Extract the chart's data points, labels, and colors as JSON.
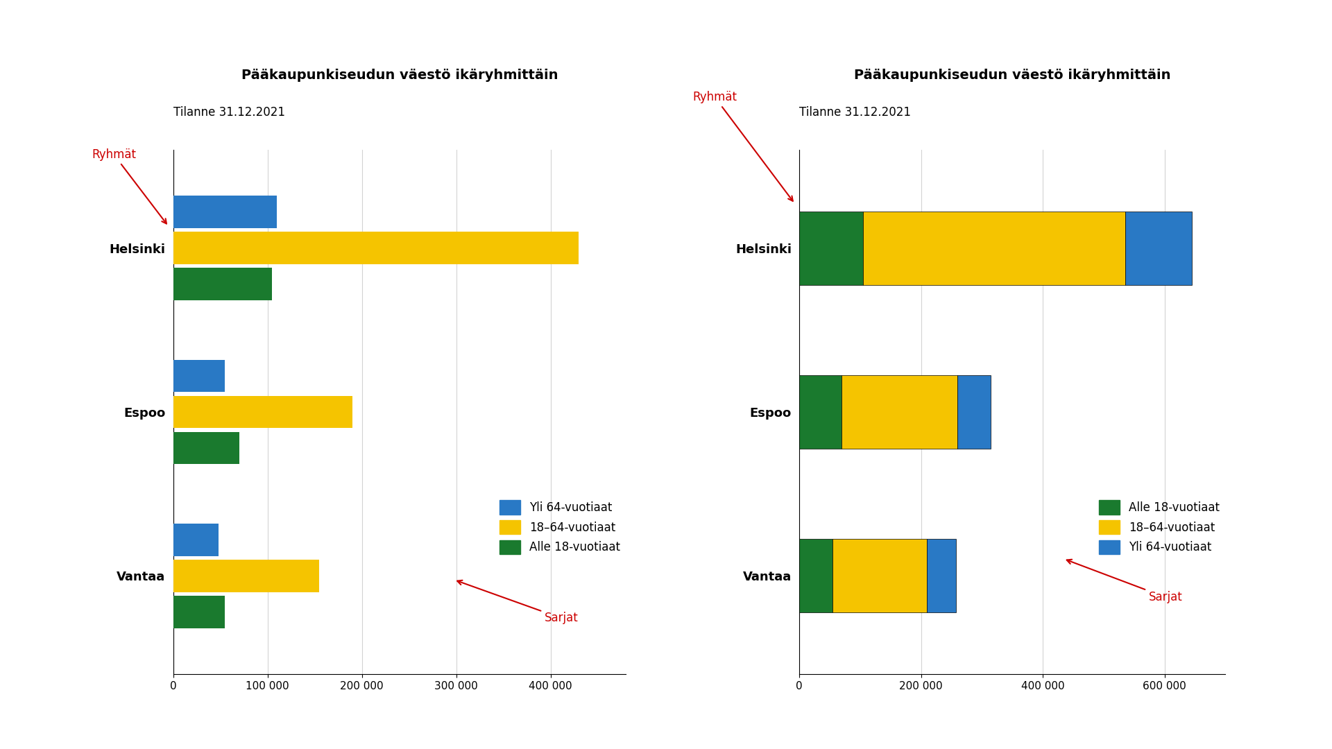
{
  "title_main": "Pääkaupunkiseudun väestö ikäryhmittäin",
  "title_sub": "Tilanne 31.12.2021",
  "cities": [
    "Helsinki",
    "Espoo",
    "Vantaa"
  ],
  "categories_grouped": [
    "Yli 64-vuotiaat",
    "18–64-vuotiaat",
    "Alle 18-vuotiaat"
  ],
  "categories_stacked": [
    "Alle 18-vuotiaat",
    "18–64-vuotiaat",
    "Yli 64-vuotiaat"
  ],
  "colors_grouped": [
    "#2979c5",
    "#f5c400",
    "#1a7a2e"
  ],
  "colors_stacked": [
    "#1a7a2e",
    "#f5c400",
    "#2979c5"
  ],
  "data": {
    "Helsinki": {
      "alle18": 105000,
      "v1864": 430000,
      "yli64": 110000
    },
    "Espoo": {
      "alle18": 70000,
      "v1864": 190000,
      "yli64": 55000
    },
    "Vantaa": {
      "alle18": 55000,
      "v1864": 155000,
      "yli64": 48000
    }
  },
  "xlim_grouped": [
    0,
    480000
  ],
  "xlim_stacked": [
    0,
    700000
  ],
  "xticks_grouped": [
    0,
    100000,
    200000,
    300000,
    400000
  ],
  "xticks_stacked": [
    0,
    200000,
    400000,
    600000
  ],
  "xlabel_grouped_labels": [
    "0",
    "100 000",
    "200 000",
    "300 000",
    "400 000"
  ],
  "xlabel_stacked_labels": [
    "0",
    "200 000",
    "400 000",
    "600 000"
  ],
  "label_ryhmät": "Ryhmät",
  "label_sarjat": "Sarjat",
  "annotation_color": "#cc0000",
  "bg_color": "#ffffff"
}
